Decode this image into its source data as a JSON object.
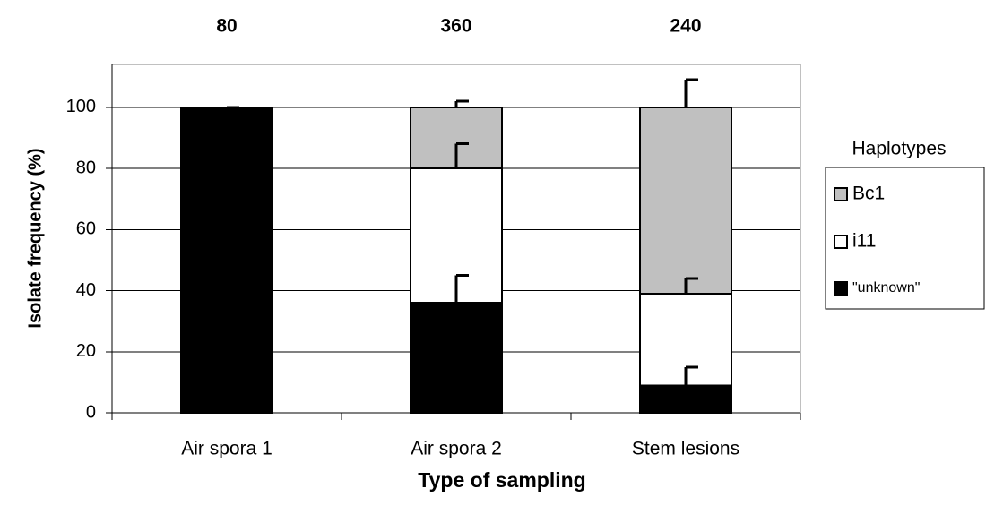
{
  "chart_data": {
    "type": "stacked_bar",
    "sample_sizes": [
      80,
      360,
      240
    ],
    "x_label": "Type of sampling",
    "y_label": "Isolate frequency (%)",
    "categories": [
      "Air spora 1",
      "Air spora 2",
      "Stem lesions"
    ],
    "series": [
      {
        "name": "Bc1",
        "color": "#c0c0c0",
        "values": [
          0,
          20,
          61
        ],
        "errors": [
          null,
          2,
          9
        ]
      },
      {
        "name": "i11",
        "color": "#ffffff",
        "values": [
          0,
          44,
          30
        ],
        "errors": [
          null,
          8,
          5
        ]
      },
      {
        "name": "\"unknown\"",
        "color": "#000000",
        "values": [
          100,
          36,
          9
        ],
        "errors": [
          0,
          9,
          6
        ]
      }
    ],
    "legend_title": "Haplotypes",
    "legend": "right",
    "ylim": [
      0,
      114
    ],
    "yticks": [
      0,
      20,
      40,
      60,
      80,
      100
    ],
    "grid": true
  }
}
